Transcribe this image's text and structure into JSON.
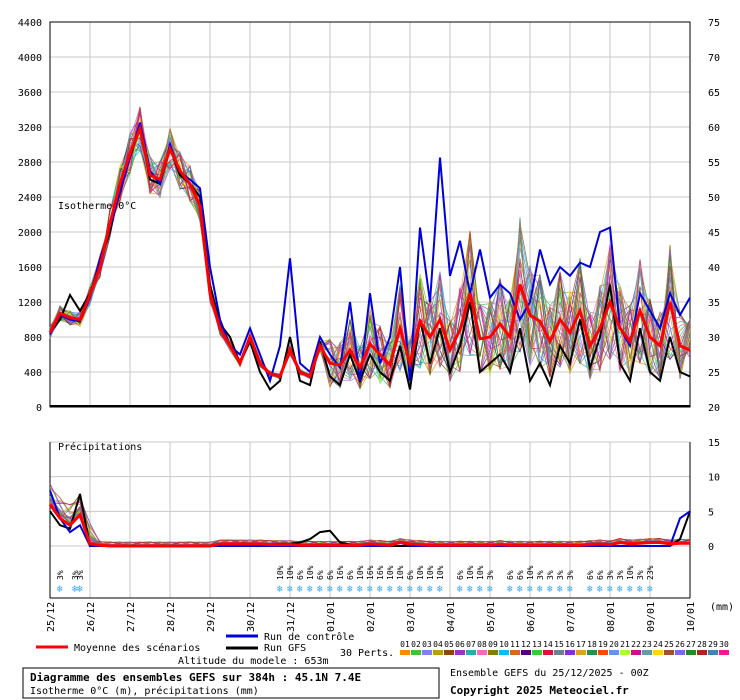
{
  "chart_data": [
    {
      "type": "line",
      "panel": "isotherm",
      "label": "Isotherme 0°C",
      "y_left_ticks": [
        "4400",
        "4000",
        "3600",
        "3200",
        "2800",
        "2400",
        "2000",
        "1600",
        "1200",
        "800",
        "400",
        "0"
      ],
      "y_right_ticks": [
        "75",
        "70",
        "65",
        "60",
        "55",
        "50",
        "45",
        "40",
        "35",
        "30",
        "25",
        "20"
      ],
      "ylim": [
        0,
        4400
      ],
      "x_hours": [
        0,
        6,
        12,
        18,
        24,
        30,
        36,
        42,
        48,
        54,
        60,
        66,
        72,
        78,
        84,
        90,
        96,
        102,
        108,
        114,
        120,
        126,
        132,
        138,
        144,
        150,
        156,
        162,
        168,
        174,
        180,
        186,
        192,
        198,
        204,
        210,
        216,
        222,
        228,
        234,
        240,
        246,
        252,
        258,
        264,
        270,
        276,
        282,
        288,
        294,
        300,
        306,
        312,
        318,
        324,
        330,
        336,
        342,
        348,
        354,
        360,
        366,
        372,
        378,
        384
      ],
      "series": [
        {
          "name": "Moyenne des scénarios",
          "color": "#ff0000",
          "values": [
            850,
            1070,
            1020,
            1000,
            1280,
            1600,
            2100,
            2550,
            2900,
            3180,
            2650,
            2600,
            2950,
            2700,
            2550,
            2300,
            1300,
            900,
            700,
            500,
            800,
            500,
            380,
            350,
            650,
            400,
            350,
            700,
            500,
            480,
            650,
            450,
            720,
            600,
            480,
            900,
            500,
            980,
            800,
            1000,
            650,
            880,
            1300,
            780,
            800,
            950,
            800,
            1400,
            1050,
            980,
            750,
            1000,
            850,
            1100,
            700,
            900,
            1200,
            900,
            750,
            1100,
            800,
            700,
            1200,
            700,
            650
          ]
        },
        {
          "name": "Run de contrôle",
          "color": "#0000dd",
          "values": [
            830,
            1050,
            1000,
            980,
            1250,
            1700,
            2050,
            2450,
            2850,
            3250,
            2700,
            2550,
            3000,
            2680,
            2600,
            2500,
            1600,
            1000,
            700,
            600,
            900,
            600,
            300,
            700,
            1700,
            500,
            400,
            800,
            600,
            450,
            1200,
            300,
            1300,
            500,
            800,
            1600,
            300,
            2050,
            1200,
            2850,
            1500,
            1900,
            1300,
            1800,
            1250,
            1400,
            1300,
            1000,
            1200,
            1800,
            1400,
            1600,
            1500,
            1650,
            1600,
            2000,
            2050,
            900,
            700,
            1300,
            1100,
            900,
            1300,
            1050,
            1250
          ]
        },
        {
          "name": "Run GFS",
          "color": "#000000",
          "values": [
            850,
            1000,
            1280,
            1100,
            1300,
            1650,
            2000,
            2500,
            2850,
            3200,
            2600,
            2550,
            2950,
            2650,
            2550,
            2400,
            1400,
            950,
            800,
            500,
            750,
            400,
            200,
            300,
            800,
            300,
            250,
            750,
            350,
            250,
            600,
            300,
            600,
            400,
            300,
            700,
            200,
            1000,
            500,
            900,
            400,
            700,
            1200,
            400,
            500,
            600,
            400,
            900,
            300,
            500,
            250,
            700,
            500,
            1000,
            450,
            800,
            1400,
            500,
            300,
            900,
            400,
            300,
            800,
            400,
            350
          ]
        }
      ]
    },
    {
      "type": "line",
      "panel": "precipitation",
      "label": "Précipitations",
      "y_right_ticks": [
        "15",
        "10",
        "5",
        "0"
      ],
      "ylim": [
        0,
        15
      ],
      "series": [
        {
          "name": "Moyenne des scénarios",
          "color": "#ff0000",
          "values": [
            6,
            4,
            3,
            4.5,
            0.3,
            0.1,
            0,
            0,
            0,
            0,
            0,
            0,
            0,
            0,
            0,
            0,
            0,
            0.3,
            0.3,
            0.3,
            0.3,
            0.3,
            0.2,
            0.2,
            0.2,
            0.1,
            0.1,
            0.1,
            0.1,
            0.1,
            0.1,
            0.1,
            0.3,
            0.2,
            0.1,
            0.5,
            0.3,
            0.2,
            0.1,
            0.1,
            0.1,
            0.1,
            0.1,
            0.1,
            0.1,
            0.2,
            0.1,
            0.1,
            0.1,
            0.1,
            0.1,
            0.1,
            0.1,
            0.1,
            0.2,
            0.3,
            0.2,
            0.5,
            0.3,
            0.4,
            0.5,
            0.5,
            0.3,
            0.4,
            0.4
          ]
        },
        {
          "name": "Run de contrôle",
          "color": "#0000dd",
          "values": [
            8,
            4,
            2,
            3,
            0,
            0,
            0,
            0,
            0,
            0,
            0,
            0,
            0,
            0,
            0,
            0,
            0,
            0,
            0,
            0,
            0,
            0,
            0,
            0,
            0,
            0,
            0,
            0,
            0,
            0,
            0,
            0,
            0,
            0,
            0,
            0.5,
            0,
            0,
            0,
            0,
            0,
            0,
            0,
            0,
            0,
            0,
            0,
            0,
            0,
            0,
            0,
            0,
            0,
            0,
            0,
            0,
            0,
            0,
            0,
            0,
            0,
            0,
            0,
            4,
            5
          ]
        },
        {
          "name": "Run GFS",
          "color": "#000000",
          "values": [
            5,
            3,
            2.5,
            7.5,
            0,
            0,
            0,
            0,
            0,
            0,
            0,
            0,
            0,
            0,
            0,
            0,
            0,
            0,
            0,
            0,
            0,
            0,
            0.2,
            0.3,
            0.3,
            0.5,
            1,
            2,
            2.2,
            0.5,
            0.2,
            0,
            0,
            0,
            0,
            0,
            0,
            0,
            0,
            0,
            0,
            0,
            0,
            0,
            0,
            0,
            0,
            0,
            0,
            0,
            0,
            0,
            0,
            0,
            0,
            0,
            0,
            0,
            0,
            0,
            0,
            0,
            0,
            1,
            5
          ]
        }
      ]
    }
  ],
  "x_ticks": [
    "25/12",
    "26/12",
    "27/12",
    "28/12",
    "29/12",
    "30/12",
    "31/12",
    "01/01",
    "02/01",
    "03/01",
    "04/01",
    "05/01",
    "06/01",
    "07/01",
    "08/01",
    "09/01",
    "10/01"
  ],
  "x_unit": "(mm)",
  "snow_probabilities": [
    {
      "h": 6,
      "pct": "3%"
    },
    {
      "h": 15,
      "pct": "3%"
    },
    {
      "h": 18,
      "pct": "3%"
    },
    {
      "h": 138,
      "pct": "10%"
    },
    {
      "h": 144,
      "pct": "10%"
    },
    {
      "h": 150,
      "pct": "6%"
    },
    {
      "h": 156,
      "pct": "10%"
    },
    {
      "h": 162,
      "pct": "6%"
    },
    {
      "h": 168,
      "pct": "6%"
    },
    {
      "h": 174,
      "pct": "16%"
    },
    {
      "h": 180,
      "pct": "6%"
    },
    {
      "h": 186,
      "pct": "10%"
    },
    {
      "h": 192,
      "pct": "16%"
    },
    {
      "h": 198,
      "pct": "16%"
    },
    {
      "h": 204,
      "pct": "10%"
    },
    {
      "h": 210,
      "pct": "10%"
    },
    {
      "h": 216,
      "pct": "6%"
    },
    {
      "h": 222,
      "pct": "10%"
    },
    {
      "h": 228,
      "pct": "10%"
    },
    {
      "h": 234,
      "pct": "10%"
    },
    {
      "h": 246,
      "pct": "6%"
    },
    {
      "h": 252,
      "pct": "10%"
    },
    {
      "h": 258,
      "pct": "10%"
    },
    {
      "h": 264,
      "pct": "3%"
    },
    {
      "h": 276,
      "pct": "6%"
    },
    {
      "h": 282,
      "pct": "6%"
    },
    {
      "h": 288,
      "pct": "10%"
    },
    {
      "h": 294,
      "pct": "3%"
    },
    {
      "h": 300,
      "pct": "3%"
    },
    {
      "h": 306,
      "pct": "3%"
    },
    {
      "h": 312,
      "pct": "3%"
    },
    {
      "h": 324,
      "pct": "6%"
    },
    {
      "h": 330,
      "pct": "6%"
    },
    {
      "h": 336,
      "pct": "3%"
    },
    {
      "h": 342,
      "pct": "3%"
    },
    {
      "h": 348,
      "pct": "10%"
    },
    {
      "h": 354,
      "pct": "3%"
    },
    {
      "h": 360,
      "pct": "23%"
    }
  ],
  "legend": {
    "mean_label": "Moyenne des scénarios",
    "control_label": "Run de contrôle",
    "gfs_label": "Run GFS",
    "perts_label": "30 Perts.",
    "pert_numbers": [
      "01",
      "02",
      "03",
      "04",
      "05",
      "06",
      "07",
      "08",
      "09",
      "10",
      "11",
      "12",
      "13",
      "14",
      "15",
      "16",
      "17",
      "18",
      "19",
      "20",
      "21",
      "22",
      "23",
      "24",
      "25",
      "26",
      "27",
      "28",
      "29",
      "30"
    ],
    "pert_colors": [
      "#ff8c00",
      "#40c040",
      "#8080ff",
      "#b8a000",
      "#8b4513",
      "#9932cc",
      "#20b2aa",
      "#ff69b4",
      "#808000",
      "#00bfff",
      "#d2691e",
      "#4b0082",
      "#32cd32",
      "#dc143c",
      "#708090",
      "#8a2be2",
      "#daa520",
      "#2e8b57",
      "#ff4500",
      "#6495ed",
      "#adff2f",
      "#c71585",
      "#5f9ea0",
      "#ffd700",
      "#a0522d",
      "#7b68ee",
      "#228b22",
      "#b22222",
      "#4682b4",
      "#ff1493"
    ]
  },
  "footer": {
    "altitude": "Altitude du modele : 653m",
    "box_title": "Diagramme des ensembles GEFS sur 384h : 45.1N 7.4E",
    "box_subtitle": "Isotherme 0°C (m), précipitations (mm)",
    "run_info": "Ensemble GEFS du 25/12/2025 - 00Z",
    "copyright": "Copyright 2025 Meteociel.fr"
  }
}
